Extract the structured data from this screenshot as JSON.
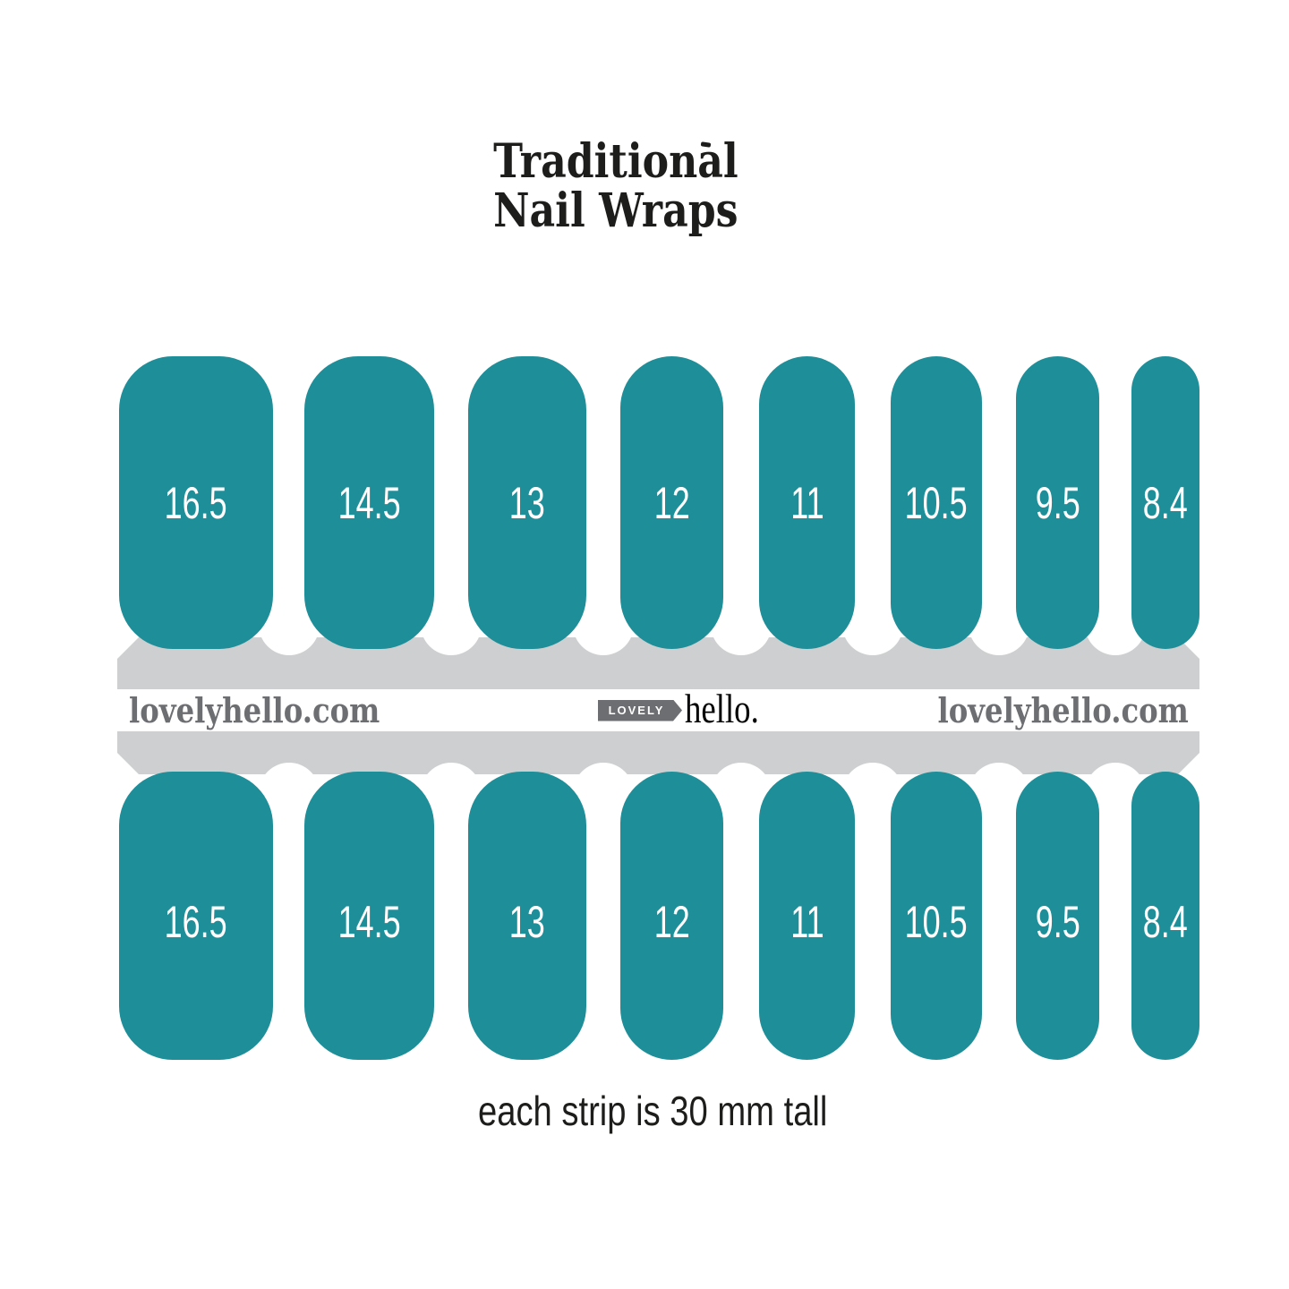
{
  "title": {
    "line1": "Traditional",
    "line2": "Nail Wraps"
  },
  "branding": {
    "watermark_left": "lovelyhello.com",
    "watermark_right": "lovelyhello.com",
    "logo_tag_text": "LOVELY",
    "logo_name_text": "hello."
  },
  "nails": {
    "sizes": [
      "16.5",
      "14.5",
      "13",
      "12",
      "11",
      "10.5",
      "9.5",
      "8.4"
    ],
    "rows": 2
  },
  "footer_note": "each strip is 30 mm tall",
  "colors": {
    "teal": "#1E8E99",
    "band_gray": "#CDCFD0",
    "brand_gray": "#6D6E71",
    "ink": "#1D1D1B"
  }
}
